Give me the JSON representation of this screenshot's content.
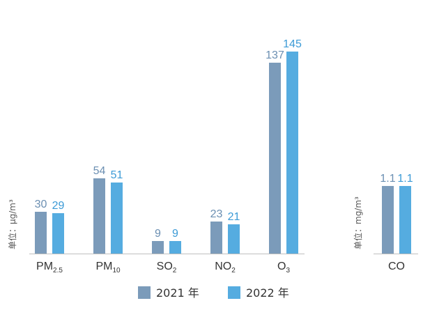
{
  "chart_data": [
    {
      "type": "bar",
      "unit_label": "单位：μg/m³",
      "categories": [
        {
          "main": "PM",
          "sub": "2.5"
        },
        {
          "main": "PM",
          "sub": "10"
        },
        {
          "main": "SO",
          "sub": "2"
        },
        {
          "main": "NO",
          "sub": "2"
        },
        {
          "main": "O",
          "sub": "3"
        }
      ],
      "series": [
        {
          "name": "2021 年",
          "color": "#7b9bba",
          "label_color": "#6b8fb2",
          "values": [
            30,
            54,
            9,
            23,
            137
          ]
        },
        {
          "name": "2022 年",
          "color": "#55ace0",
          "label_color": "#3b9ad6",
          "values": [
            29,
            51,
            9,
            21,
            145
          ]
        }
      ]
    },
    {
      "type": "bar",
      "unit_label": "单位：mg/m³",
      "categories": [
        {
          "main": "CO",
          "sub": ""
        }
      ],
      "series": [
        {
          "name": "2021 年",
          "color": "#7b9bba",
          "label_color": "#6b8fb2",
          "values": [
            1.1
          ]
        },
        {
          "name": "2022 年",
          "color": "#55ace0",
          "label_color": "#3b9ad6",
          "values": [
            1.1
          ]
        }
      ]
    }
  ],
  "legend": [
    {
      "label": "2021 年",
      "color": "#7b9bba"
    },
    {
      "label": "2022 年",
      "color": "#55ace0"
    }
  ]
}
